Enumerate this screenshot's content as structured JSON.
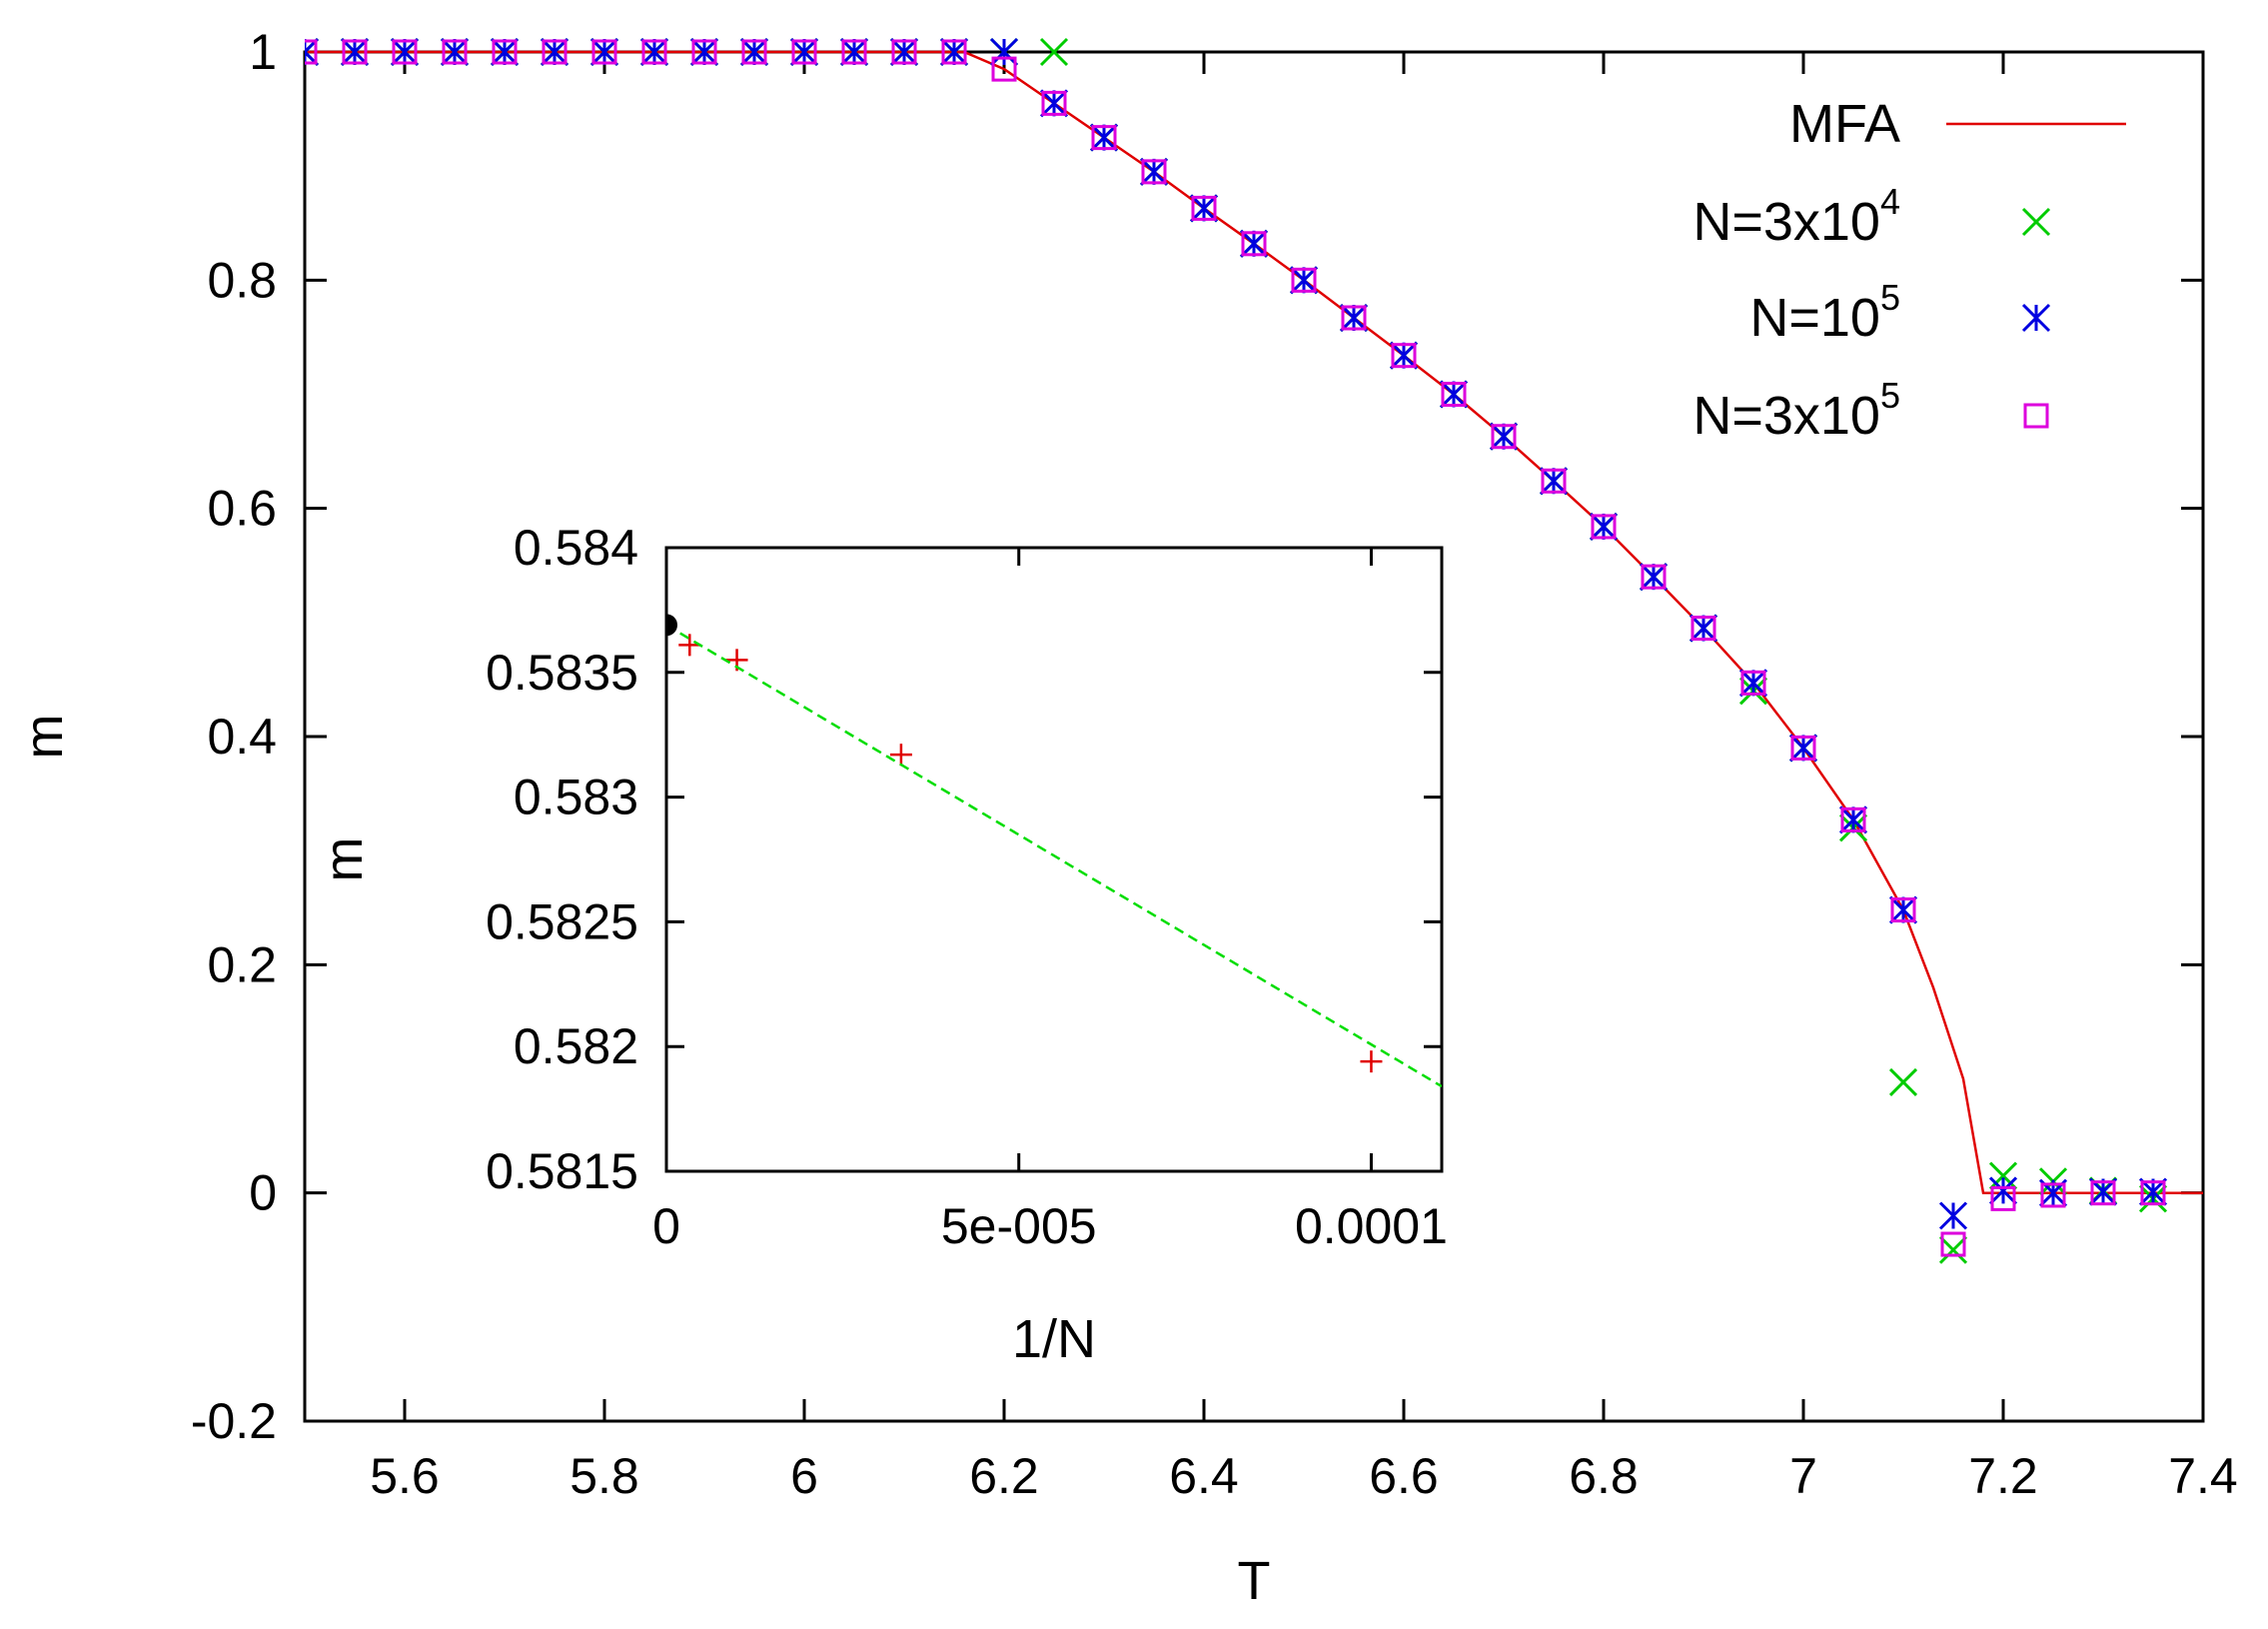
{
  "chart_data": [
    {
      "type": "scatter",
      "id": "main",
      "xlabel": "T",
      "ylabel": "m",
      "xlim": [
        5.5,
        7.4
      ],
      "ylim": [
        -0.2,
        1.0
      ],
      "xticks": [
        5.6,
        5.8,
        6.0,
        6.2,
        6.4,
        6.6,
        6.8,
        7.0,
        7.2,
        7.4
      ],
      "xtick_labels": [
        "5.6",
        "5.8",
        "6",
        "6.2",
        "6.4",
        "6.6",
        "6.8",
        "7",
        "7.2",
        "7.4"
      ],
      "yticks": [
        -0.2,
        0,
        0.2,
        0.4,
        0.6,
        0.8,
        1.0
      ],
      "ytick_labels": [
        "-0.2",
        "0",
        "0.2",
        "0.4",
        "0.6",
        "0.8",
        "1"
      ],
      "legend_position": "top-right",
      "series": [
        {
          "name": "MFA",
          "legend_label": "MFA",
          "legend_sup": "",
          "style": "line",
          "color": "#e00000",
          "x": [
            5.5,
            6.16,
            6.2,
            6.25,
            6.3,
            6.35,
            6.4,
            6.45,
            6.5,
            6.55,
            6.6,
            6.65,
            6.7,
            6.75,
            6.8,
            6.85,
            6.9,
            6.95,
            7.0,
            7.05,
            7.1,
            7.13,
            7.16,
            7.18,
            7.2,
            7.4
          ],
          "y": [
            1.0,
            1.0,
            0.985,
            0.955,
            0.925,
            0.895,
            0.863,
            0.832,
            0.8,
            0.767,
            0.734,
            0.7,
            0.663,
            0.624,
            0.584,
            0.54,
            0.495,
            0.447,
            0.39,
            0.327,
            0.248,
            0.18,
            0.1,
            0.0,
            0.0,
            0.0
          ]
        },
        {
          "name": "N=3x10^4",
          "legend_label": "N=3x10",
          "legend_sup": "4",
          "style": "x",
          "color": "#00cc00",
          "x": [
            5.5,
            5.55,
            5.6,
            5.65,
            5.7,
            5.75,
            5.8,
            5.85,
            5.9,
            5.95,
            6.0,
            6.05,
            6.1,
            6.15,
            6.2,
            6.25,
            6.3,
            6.35,
            6.4,
            6.45,
            6.5,
            6.55,
            6.6,
            6.65,
            6.7,
            6.75,
            6.8,
            6.85,
            6.9,
            6.95,
            7.0,
            7.05,
            7.1,
            7.15,
            7.2,
            7.25,
            7.3,
            7.35
          ],
          "y": [
            1,
            1,
            1,
            1,
            1,
            1,
            1,
            1,
            1,
            1,
            1,
            1,
            1,
            1,
            1,
            1,
            0.925,
            0.895,
            0.863,
            0.832,
            0.8,
            0.767,
            0.734,
            0.7,
            0.663,
            0.624,
            0.584,
            0.54,
            0.495,
            0.44,
            0.39,
            0.32,
            0.097,
            -0.05,
            0.015,
            0.01,
            0.002,
            -0.005
          ]
        },
        {
          "name": "N=10^5",
          "legend_label": "N=10",
          "legend_sup": "5",
          "style": "star",
          "color": "#0000e0",
          "x": [
            5.5,
            5.55,
            5.6,
            5.65,
            5.7,
            5.75,
            5.8,
            5.85,
            5.9,
            5.95,
            6.0,
            6.05,
            6.1,
            6.15,
            6.2,
            6.25,
            6.3,
            6.35,
            6.4,
            6.45,
            6.5,
            6.55,
            6.6,
            6.65,
            6.7,
            6.75,
            6.8,
            6.85,
            6.9,
            6.95,
            7.0,
            7.05,
            7.1,
            7.15,
            7.2,
            7.25,
            7.3,
            7.35
          ],
          "y": [
            1,
            1,
            1,
            1,
            1,
            1,
            1,
            1,
            1,
            1,
            1,
            1,
            1,
            1,
            1,
            0.955,
            0.925,
            0.895,
            0.863,
            0.832,
            0.8,
            0.767,
            0.734,
            0.7,
            0.663,
            0.624,
            0.584,
            0.54,
            0.495,
            0.447,
            0.39,
            0.327,
            0.248,
            -0.02,
            0.002,
            0.0,
            0.001,
            0.001
          ]
        },
        {
          "name": "N=3x10^5",
          "legend_label": "N=3x10",
          "legend_sup": "5",
          "style": "square",
          "color": "#dd00dd",
          "x": [
            5.5,
            5.55,
            5.6,
            5.65,
            5.7,
            5.75,
            5.8,
            5.85,
            5.9,
            5.95,
            6.0,
            6.05,
            6.1,
            6.15,
            6.2,
            6.25,
            6.3,
            6.35,
            6.4,
            6.45,
            6.5,
            6.55,
            6.6,
            6.65,
            6.7,
            6.75,
            6.8,
            6.85,
            6.9,
            6.95,
            7.0,
            7.05,
            7.1,
            7.15,
            7.2,
            7.25,
            7.3,
            7.35
          ],
          "y": [
            1,
            1,
            1,
            1,
            1,
            1,
            1,
            1,
            1,
            1,
            1,
            1,
            1,
            1,
            0.985,
            0.955,
            0.925,
            0.895,
            0.863,
            0.832,
            0.8,
            0.767,
            0.734,
            0.7,
            0.663,
            0.624,
            0.584,
            0.54,
            0.495,
            0.447,
            0.39,
            0.327,
            0.248,
            -0.045,
            -0.005,
            -0.002,
            0.0,
            0.0
          ]
        }
      ]
    },
    {
      "type": "scatter",
      "id": "inset",
      "xlabel": "1/N",
      "ylabel": "m",
      "xlim": [
        0,
        0.00011
      ],
      "ylim": [
        0.5815,
        0.584
      ],
      "xticks": [
        0,
        5e-05,
        0.0001
      ],
      "xtick_labels": [
        "0",
        "5e-005",
        "0.0001"
      ],
      "yticks": [
        0.5815,
        0.582,
        0.5825,
        0.583,
        0.5835,
        0.584
      ],
      "ytick_labels": [
        "0.5815",
        "0.582",
        "0.5825",
        "0.583",
        "0.5835",
        "0.584"
      ],
      "series": [
        {
          "name": "data",
          "style": "plus",
          "color": "#e00000",
          "x": [
            3.3e-06,
            1e-05,
            3.33e-05,
            0.0001
          ],
          "y": [
            0.58361,
            0.58355,
            0.58317,
            0.58194
          ]
        },
        {
          "name": "fit",
          "style": "dashed-line",
          "color": "#00dd00",
          "x": [
            0,
            0.00011
          ],
          "y": [
            0.58369,
            0.58184
          ]
        },
        {
          "name": "extrapolation",
          "style": "dot",
          "color": "#000000",
          "x": [
            0
          ],
          "y": [
            0.58369
          ]
        }
      ]
    }
  ]
}
